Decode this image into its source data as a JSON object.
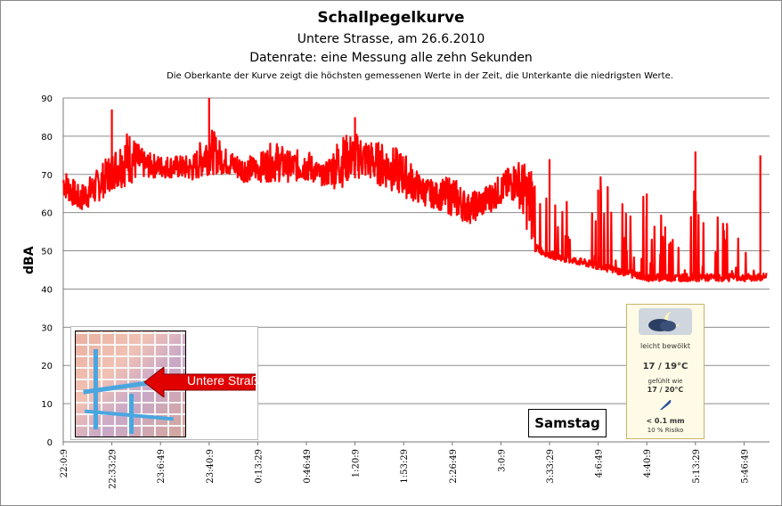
{
  "header": {
    "title": "Schallpegelkurve",
    "subtitle": "Untere  Strasse, am 26.6.2010",
    "datarate": "Datenrate: eine Messung alle zehn Sekunden",
    "note": "Die Oberkante der Kurve zeigt die höchsten  gemessenen Werte  in der Zeit, die Unterkante  die niedrigsten Werte."
  },
  "map_inset": {
    "label": "Untere Straße"
  },
  "weather": {
    "condition": "leicht bewölkt",
    "temperature": "17 / 19°C",
    "feels_label": "gefühlt wie",
    "feels_value": "17 / 20°C",
    "rain": "< 0.1 mm",
    "risk": "10 % Risiko",
    "icon": "partly-cloudy-night-icon"
  },
  "day_label": "Samstag",
  "chart_data": {
    "type": "line",
    "title": "Schallpegelkurve",
    "ylabel": "dBA",
    "xlabel": "",
    "ylim": [
      0,
      90
    ],
    "yticks": [
      0,
      10,
      20,
      30,
      40,
      50,
      60,
      70,
      80,
      90
    ],
    "grid": "horizontal",
    "line_color": "#ff0000",
    "xtick_labels": [
      "22:0:9",
      "22:33:29",
      "23:6:49",
      "23:40:9",
      "0:13:29",
      "0:46:49",
      "1:20:9",
      "1:53:29",
      "2:26:49",
      "3:0:9",
      "3:33:29",
      "4:6:49",
      "4:40:9",
      "5:13:29",
      "5:46:49"
    ],
    "series": [
      {
        "x": [
          "22:0:9",
          "22:11:09",
          "22:22:19",
          "22:33:29",
          "22:44:39",
          "22:55:39",
          "23:6:49",
          "23:17:59",
          "23:28:59",
          "23:40:9",
          "23:51:19",
          "0:2:19",
          "0:13:29",
          "0:24:39",
          "0:35:49",
          "0:46:49",
          "0:57:59",
          "1:9:09",
          "1:20:9",
          "1:31:19",
          "1:42:29",
          "1:53:29",
          "2:4:39",
          "2:15:49",
          "2:26:49",
          "2:37:59",
          "2:49:09",
          "3:0:9",
          "3:11:19",
          "3:22:29",
          "3:33:29",
          "3:44:39",
          "3:55:49",
          "4:6:49",
          "4:17:59",
          "4:29:09",
          "4:40:9",
          "4:51:19",
          "5:2:29",
          "5:13:29",
          "5:24:39",
          "5:35:49",
          "5:46:49",
          "5:57:59",
          "6:2:19"
        ],
        "upper": [
          72,
          67,
          71,
          76,
          82,
          76,
          75,
          75,
          75,
          83,
          77,
          75,
          75,
          79,
          76,
          77,
          72,
          80,
          81,
          79,
          78,
          76,
          70,
          68,
          70,
          65,
          67,
          70,
          74,
          72,
          62,
          63,
          64,
          70,
          66,
          62,
          67,
          63,
          64,
          66,
          60,
          58,
          57,
          58,
          75
        ],
        "lower": [
          64,
          60,
          62,
          66,
          67,
          69,
          69,
          69,
          68,
          70,
          70,
          68,
          68,
          68,
          68,
          68,
          67,
          66,
          69,
          68,
          66,
          64,
          62,
          61,
          59,
          57,
          59,
          62,
          63,
          50,
          48,
          47,
          46,
          45,
          44,
          43,
          42,
          42,
          42,
          42,
          42,
          42,
          42,
          42,
          43
        ]
      }
    ],
    "peaks": [
      {
        "x": "22:33:29",
        "y": 87
      },
      {
        "x": "23:40:9",
        "y": 90
      },
      {
        "x": "1:20:9",
        "y": 85
      },
      {
        "x": "3:33:29",
        "y": 74
      },
      {
        "x": "4:6:49",
        "y": 66
      },
      {
        "x": "4:40:9",
        "y": 65
      },
      {
        "x": "5:13:29",
        "y": 76
      },
      {
        "x": "5:57:59",
        "y": 75
      }
    ]
  }
}
